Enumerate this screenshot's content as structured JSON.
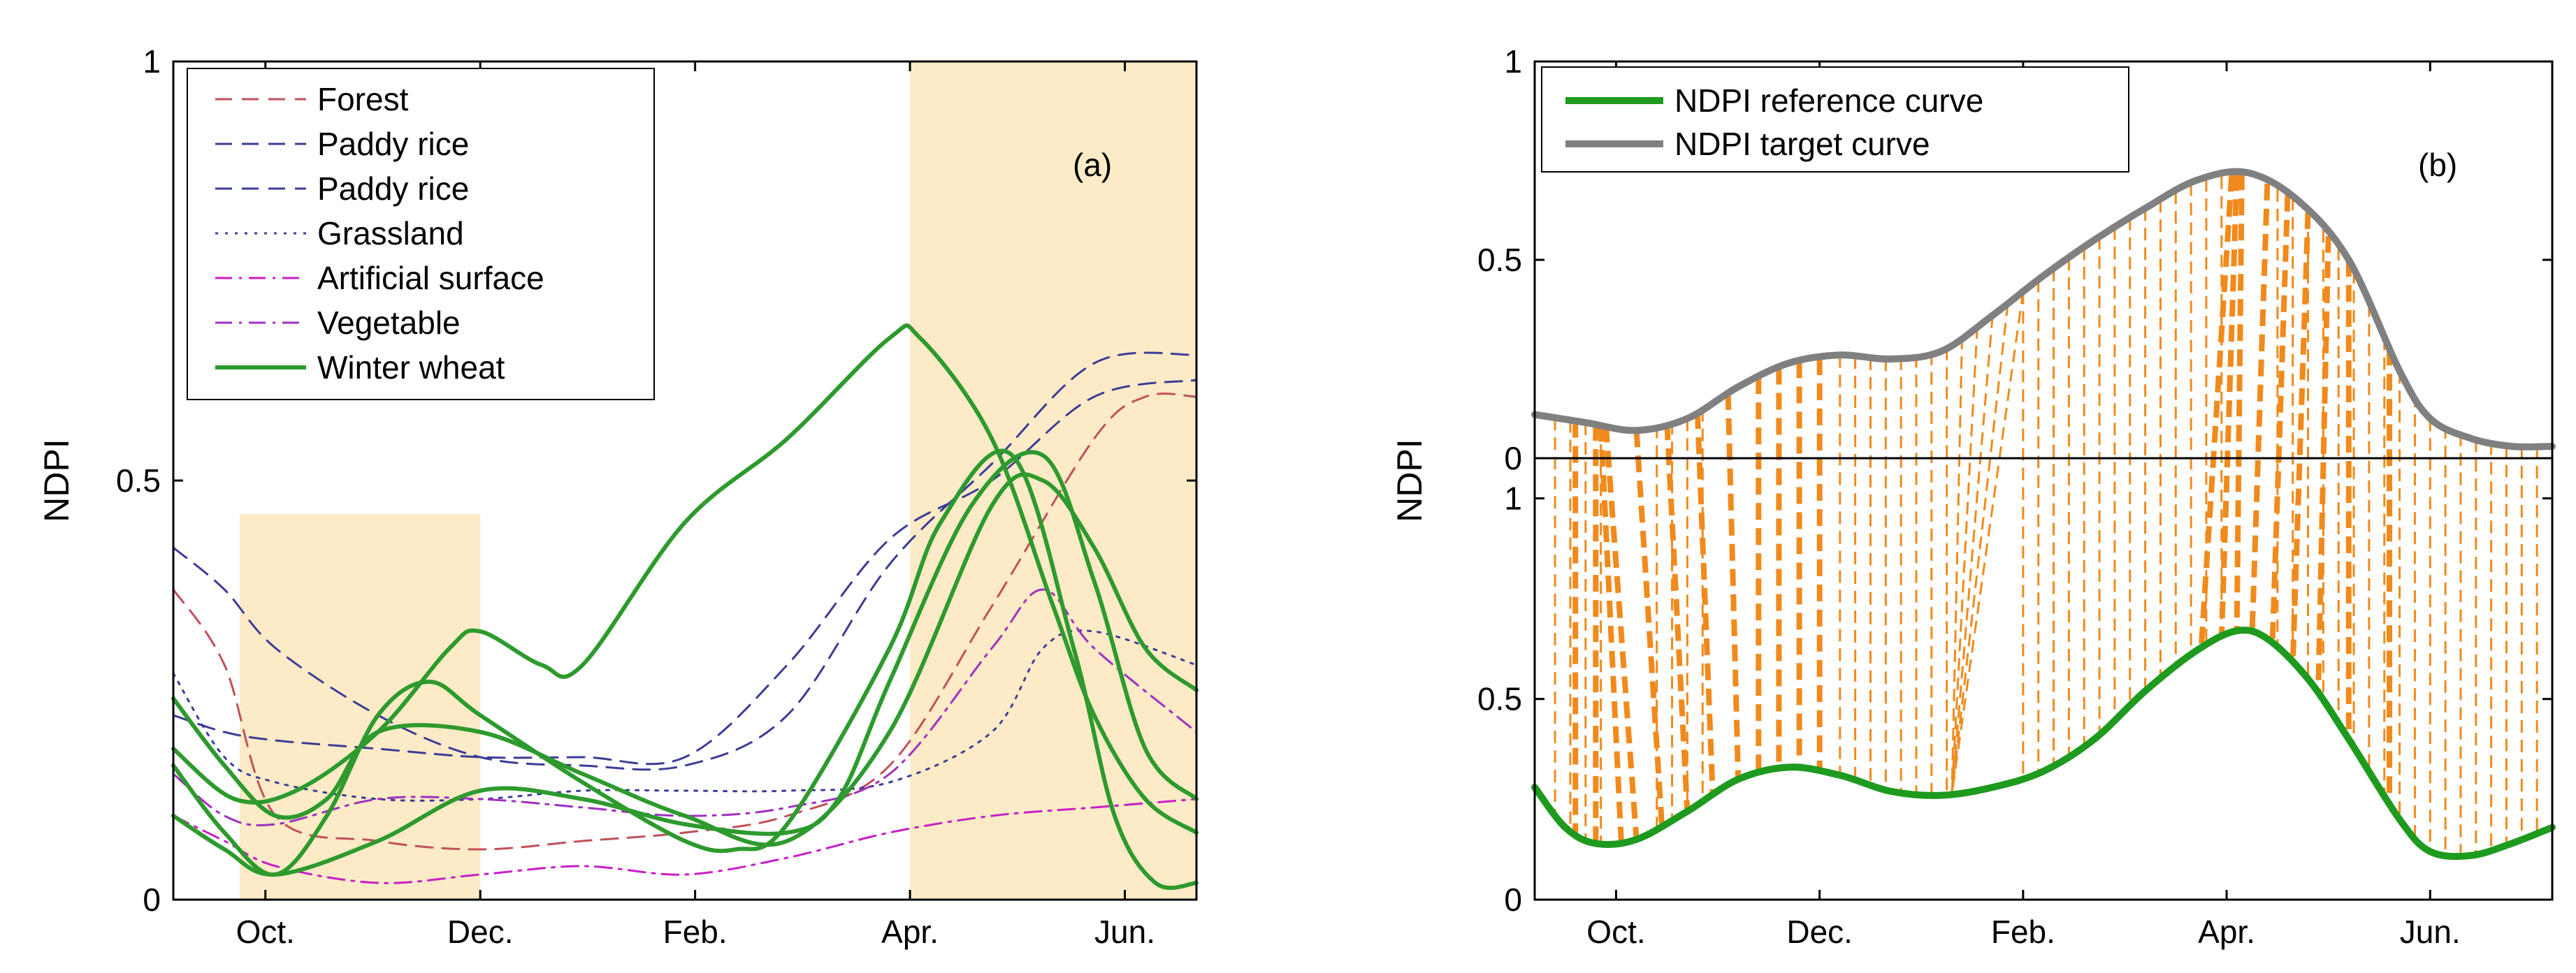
{
  "colors": {
    "shade": "#fcebc6",
    "forest": "#c0505a",
    "rice1": "#3c3c96",
    "rice2": "#3c3c96",
    "grass": "#3c3c96",
    "artificial": "#c81ec8",
    "vegetable": "#a030c0",
    "wheat": "#2e9a2e",
    "reference": "#1e9a1e",
    "target": "#808080",
    "link": "#f08a1c"
  },
  "chart_data": [
    {
      "type": "line",
      "panel_label": "(a)",
      "ylabel": "NDPI",
      "xlabel": "",
      "xlim": [
        0,
        1
      ],
      "ylim": [
        0,
        1
      ],
      "yticks": [
        0,
        0.5,
        1
      ],
      "ytick_labels": [
        "0",
        "0.5",
        "1"
      ],
      "xticks": [
        0.09,
        0.3,
        0.51,
        0.72,
        0.93
      ],
      "xtick_labels": [
        "Oct.",
        "Dec.",
        "Feb.",
        "Apr.",
        "Jun."
      ],
      "shaded_ranges": [
        {
          "x0": 0.065,
          "x1": 0.3,
          "y0": 0,
          "y1": 0.46
        },
        {
          "x0": 0.72,
          "x1": 1.0,
          "y0": 0,
          "y1": 1
        }
      ],
      "legend_position": "top-left",
      "series": [
        {
          "name": "Forest",
          "style": "dashed",
          "color_key": "forest",
          "legend": true,
          "x": [
            0,
            0.05,
            0.1,
            0.2,
            0.3,
            0.4,
            0.5,
            0.6,
            0.7,
            0.8,
            0.9,
            0.95,
            1.0
          ],
          "y": [
            0.37,
            0.28,
            0.1,
            0.07,
            0.06,
            0.07,
            0.08,
            0.1,
            0.16,
            0.35,
            0.55,
            0.6,
            0.6
          ]
        },
        {
          "name": "Paddy rice",
          "style": "dashed",
          "color_key": "rice1",
          "legend": true,
          "x": [
            0,
            0.05,
            0.1,
            0.2,
            0.3,
            0.4,
            0.5,
            0.6,
            0.7,
            0.8,
            0.9,
            1.0
          ],
          "y": [
            0.42,
            0.37,
            0.3,
            0.22,
            0.17,
            0.16,
            0.16,
            0.22,
            0.4,
            0.52,
            0.64,
            0.65
          ]
        },
        {
          "name": "Paddy rice",
          "style": "dashed",
          "color_key": "rice2",
          "legend": true,
          "x": [
            0,
            0.05,
            0.1,
            0.2,
            0.3,
            0.4,
            0.5,
            0.6,
            0.7,
            0.8,
            0.9,
            1.0
          ],
          "y": [
            0.22,
            0.2,
            0.19,
            0.18,
            0.17,
            0.17,
            0.17,
            0.28,
            0.43,
            0.5,
            0.6,
            0.62
          ]
        },
        {
          "name": "Grassland",
          "style": "dotted",
          "color_key": "grass",
          "legend": true,
          "x": [
            0,
            0.05,
            0.1,
            0.2,
            0.3,
            0.4,
            0.5,
            0.6,
            0.7,
            0.8,
            0.85,
            0.9,
            1.0
          ],
          "y": [
            0.27,
            0.17,
            0.14,
            0.12,
            0.12,
            0.13,
            0.13,
            0.13,
            0.14,
            0.2,
            0.3,
            0.32,
            0.28
          ]
        },
        {
          "name": "Artificial surface",
          "style": "dashdot",
          "color_key": "artificial",
          "legend": true,
          "x": [
            0,
            0.05,
            0.1,
            0.2,
            0.3,
            0.4,
            0.5,
            0.6,
            0.7,
            0.8,
            0.9,
            1.0
          ],
          "y": [
            0.1,
            0.07,
            0.04,
            0.02,
            0.03,
            0.04,
            0.03,
            0.05,
            0.08,
            0.1,
            0.11,
            0.12
          ]
        },
        {
          "name": "Vegetable",
          "style": "dashdot",
          "color_key": "vegetable",
          "legend": true,
          "x": [
            0,
            0.05,
            0.1,
            0.2,
            0.3,
            0.4,
            0.5,
            0.6,
            0.7,
            0.8,
            0.85,
            0.9,
            1.0
          ],
          "y": [
            0.15,
            0.1,
            0.09,
            0.12,
            0.12,
            0.11,
            0.1,
            0.11,
            0.15,
            0.3,
            0.37,
            0.3,
            0.2
          ]
        },
        {
          "name": "Winter wheat",
          "style": "solid",
          "color_key": "wheat",
          "legend": true,
          "x": [
            0,
            0.06,
            0.12,
            0.2,
            0.27,
            0.3,
            0.36,
            0.4,
            0.5,
            0.6,
            0.7,
            0.73,
            0.8,
            0.86,
            0.9,
            0.95,
            1.0
          ],
          "y": [
            0.18,
            0.12,
            0.13,
            0.2,
            0.3,
            0.32,
            0.28,
            0.28,
            0.45,
            0.55,
            0.67,
            0.67,
            0.55,
            0.35,
            0.22,
            0.12,
            0.08
          ]
        },
        {
          "name": "Winter wheat",
          "style": "solid",
          "color_key": "wheat",
          "legend": false,
          "x": [
            0,
            0.05,
            0.1,
            0.15,
            0.2,
            0.3,
            0.4,
            0.5,
            0.6,
            0.7,
            0.8,
            0.85,
            0.9,
            0.95,
            1.0
          ],
          "y": [
            0.24,
            0.16,
            0.1,
            0.12,
            0.2,
            0.2,
            0.15,
            0.1,
            0.07,
            0.2,
            0.47,
            0.5,
            0.42,
            0.3,
            0.25
          ]
        },
        {
          "name": "Winter wheat",
          "style": "solid",
          "color_key": "wheat",
          "legend": false,
          "x": [
            0,
            0.05,
            0.1,
            0.15,
            0.2,
            0.25,
            0.3,
            0.4,
            0.5,
            0.55,
            0.6,
            0.7,
            0.75,
            0.82,
            0.88,
            0.92,
            0.96,
            1.0
          ],
          "y": [
            0.16,
            0.08,
            0.03,
            0.1,
            0.22,
            0.26,
            0.22,
            0.14,
            0.07,
            0.06,
            0.09,
            0.3,
            0.45,
            0.53,
            0.3,
            0.1,
            0.02,
            0.02
          ]
        },
        {
          "name": "Winter wheat",
          "style": "solid",
          "color_key": "wheat",
          "legend": false,
          "x": [
            0,
            0.05,
            0.1,
            0.2,
            0.3,
            0.4,
            0.5,
            0.6,
            0.65,
            0.7,
            0.78,
            0.85,
            0.9,
            0.95,
            1.0
          ],
          "y": [
            0.1,
            0.06,
            0.03,
            0.07,
            0.13,
            0.12,
            0.09,
            0.08,
            0.12,
            0.26,
            0.47,
            0.53,
            0.38,
            0.18,
            0.12
          ]
        }
      ]
    },
    {
      "type": "line",
      "panel_label": "(b)",
      "ylabel": "NDPI",
      "xlabel": "",
      "xlim": [
        0,
        1
      ],
      "upper_axis": {
        "ylim": [
          0,
          1
        ],
        "yticks": [
          0,
          0.5,
          1
        ],
        "ytick_labels": [
          "0",
          "0.5",
          "1"
        ]
      },
      "lower_axis": {
        "ylim": [
          0,
          1.1
        ],
        "yticks": [
          0,
          0.5,
          1
        ],
        "ytick_labels": [
          "0",
          "0.5",
          "1"
        ]
      },
      "xticks": [
        0.08,
        0.28,
        0.48,
        0.68,
        0.88
      ],
      "xtick_labels": [
        "Oct.",
        "Dec.",
        "Feb.",
        "Apr.",
        "Jun."
      ],
      "legend_position": "top-left",
      "series": [
        {
          "name": "NDPI reference curve",
          "axis": "lower",
          "color_key": "reference",
          "x": [
            0,
            0.03,
            0.06,
            0.1,
            0.15,
            0.2,
            0.25,
            0.3,
            0.35,
            0.4,
            0.45,
            0.5,
            0.55,
            0.6,
            0.65,
            0.69,
            0.72,
            0.76,
            0.8,
            0.85,
            0.88,
            0.92,
            0.96,
            1.0
          ],
          "y": [
            0.28,
            0.18,
            0.14,
            0.15,
            0.22,
            0.3,
            0.33,
            0.31,
            0.27,
            0.26,
            0.28,
            0.32,
            0.4,
            0.52,
            0.62,
            0.67,
            0.65,
            0.55,
            0.4,
            0.2,
            0.12,
            0.11,
            0.14,
            0.18
          ]
        },
        {
          "name": "NDPI target curve",
          "axis": "upper",
          "color_key": "target",
          "x": [
            0,
            0.05,
            0.1,
            0.15,
            0.2,
            0.25,
            0.3,
            0.35,
            0.4,
            0.45,
            0.5,
            0.55,
            0.6,
            0.65,
            0.7,
            0.75,
            0.8,
            0.85,
            0.88,
            0.92,
            0.96,
            1.0
          ],
          "y": [
            0.11,
            0.09,
            0.07,
            0.1,
            0.18,
            0.24,
            0.26,
            0.25,
            0.27,
            0.36,
            0.46,
            0.55,
            0.63,
            0.7,
            0.72,
            0.65,
            0.5,
            0.22,
            0.1,
            0.05,
            0.03,
            0.03
          ]
        }
      ],
      "alignment_links": {
        "thin": [
          0.02,
          0.035,
          0.05,
          0.065,
          0.12,
          0.135,
          0.15,
          0.165,
          0.3,
          0.315,
          0.33,
          0.345,
          0.36,
          0.375,
          0.39,
          0.405,
          0.48,
          0.495,
          0.51,
          0.525,
          0.54,
          0.555,
          0.57,
          0.585,
          0.6,
          0.615,
          0.63,
          0.645,
          0.66,
          0.675,
          0.73,
          0.745,
          0.76,
          0.775,
          0.79,
          0.805,
          0.82,
          0.835,
          0.85,
          0.865,
          0.88,
          0.895,
          0.91,
          0.925,
          0.94,
          0.955,
          0.97,
          0.985
        ],
        "fan_thin": {
          "ref": 0.41,
          "targets": [
            0.42,
            0.435,
            0.45,
            0.465,
            0.48
          ]
        },
        "thick": [
          {
            "x_ref": 0.04,
            "x_tgt": 0.04
          },
          {
            "x_ref": 0.06,
            "x_tgt": 0.06
          },
          {
            "x_ref": 0.085,
            "x_tgt": 0.065
          },
          {
            "x_ref": 0.1,
            "x_tgt": 0.07
          },
          {
            "x_ref": 0.125,
            "x_tgt": 0.1
          },
          {
            "x_ref": 0.15,
            "x_tgt": 0.13
          },
          {
            "x_ref": 0.175,
            "x_tgt": 0.16
          },
          {
            "x_ref": 0.2,
            "x_tgt": 0.19
          },
          {
            "x_ref": 0.22,
            "x_tgt": 0.22
          },
          {
            "x_ref": 0.24,
            "x_tgt": 0.24
          },
          {
            "x_ref": 0.26,
            "x_tgt": 0.26
          },
          {
            "x_ref": 0.28,
            "x_tgt": 0.28
          },
          {
            "x_ref": 0.655,
            "x_tgt": 0.685
          },
          {
            "x_ref": 0.675,
            "x_tgt": 0.69
          },
          {
            "x_ref": 0.69,
            "x_tgt": 0.695
          },
          {
            "x_ref": 0.705,
            "x_tgt": 0.72
          },
          {
            "x_ref": 0.725,
            "x_tgt": 0.74
          },
          {
            "x_ref": 0.745,
            "x_tgt": 0.76
          },
          {
            "x_ref": 0.77,
            "x_tgt": 0.78
          },
          {
            "x_ref": 0.8,
            "x_tgt": 0.8
          },
          {
            "x_ref": 0.84,
            "x_tgt": 0.84
          }
        ]
      }
    }
  ]
}
